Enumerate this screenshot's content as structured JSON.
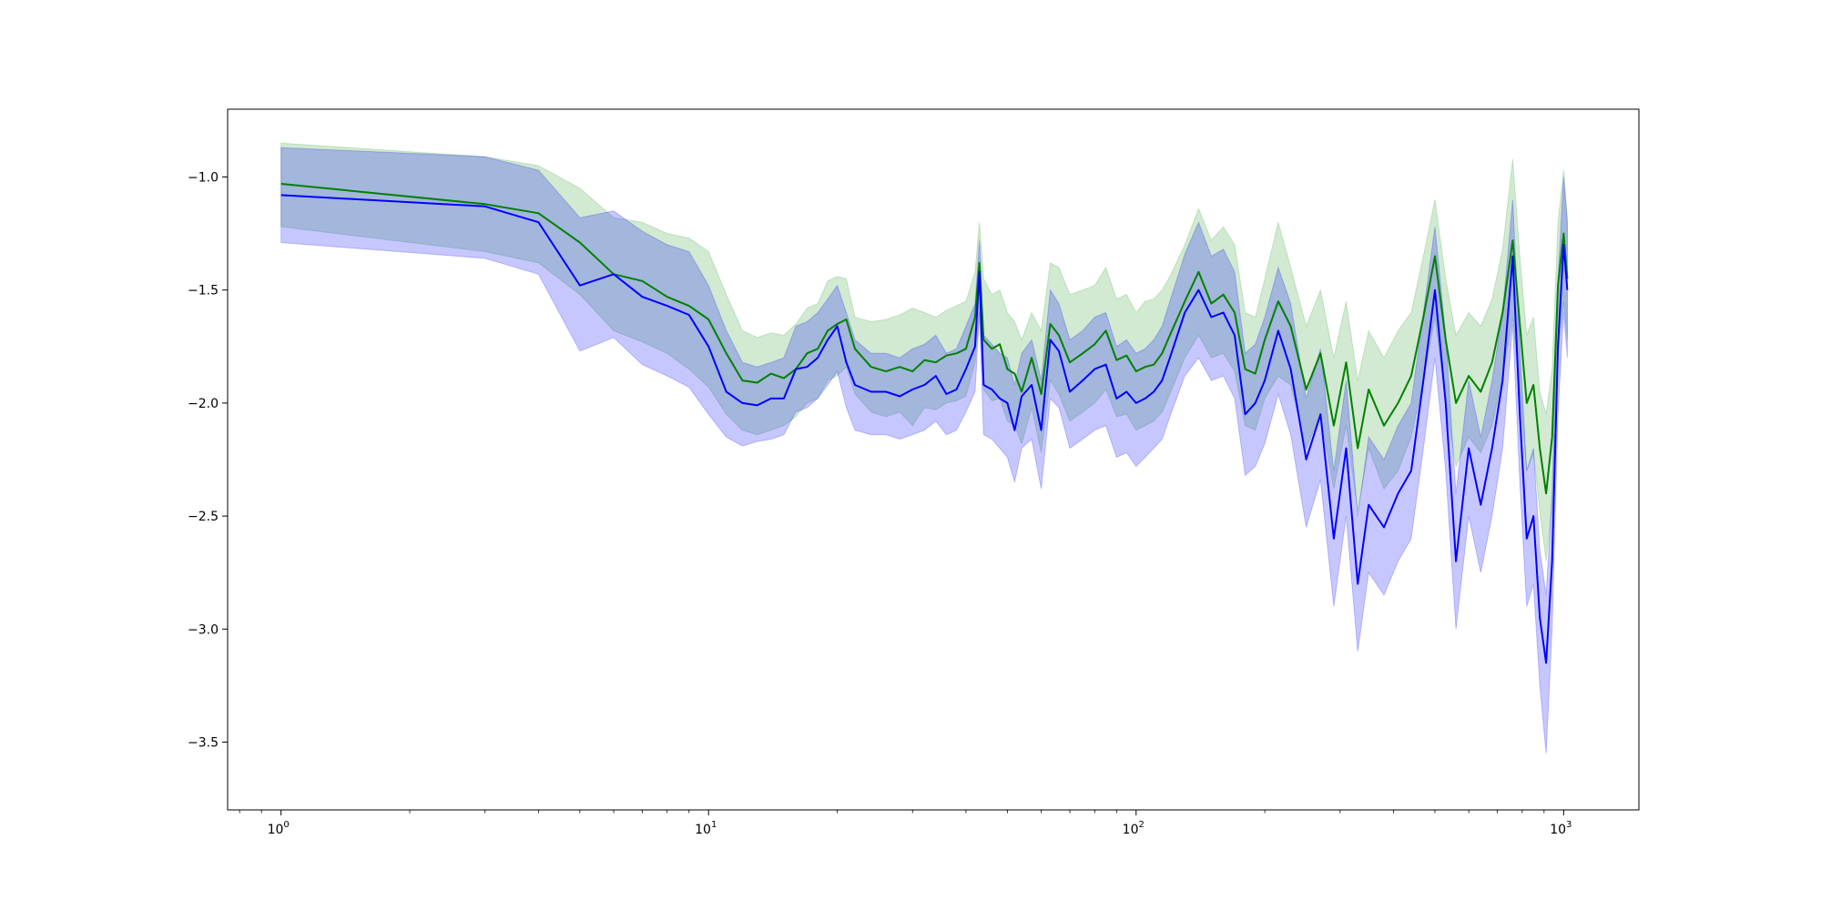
{
  "chart_data": {
    "type": "line",
    "title": "",
    "xlabel": "",
    "ylabel": "",
    "x_scale": "log",
    "xlim": [
      0.75,
      1500
    ],
    "ylim": [
      -3.8,
      -0.7
    ],
    "grid": false,
    "legend": "none",
    "x_ticks": [
      {
        "value": 1,
        "base": "10",
        "exp": "0"
      },
      {
        "value": 10,
        "base": "10",
        "exp": "1"
      },
      {
        "value": 100,
        "base": "10",
        "exp": "2"
      },
      {
        "value": 1000,
        "base": "10",
        "exp": "3"
      }
    ],
    "y_ticks": [
      {
        "value": -1.0,
        "label": "−1.0"
      },
      {
        "value": -1.5,
        "label": "−1.5"
      },
      {
        "value": -2.0,
        "label": "−2.0"
      },
      {
        "value": -2.5,
        "label": "−2.5"
      },
      {
        "value": -3.0,
        "label": "−3.0"
      },
      {
        "value": -3.5,
        "label": "−3.5"
      }
    ],
    "series": [
      {
        "color": "#008000",
        "band_color": "#2ca02c",
        "x": [
          1,
          3,
          4,
          5,
          6,
          7,
          8,
          9,
          10,
          11,
          12,
          13,
          14,
          15,
          16,
          17,
          18,
          19,
          20,
          21,
          22,
          24,
          26,
          28,
          30,
          32,
          34,
          36,
          38,
          40,
          42,
          43,
          44,
          46,
          48,
          50,
          52,
          54,
          57,
          60,
          63,
          66,
          70,
          75,
          80,
          85,
          90,
          95,
          100,
          105,
          110,
          115,
          120,
          130,
          140,
          150,
          160,
          170,
          180,
          190,
          200,
          215,
          230,
          250,
          270,
          290,
          310,
          330,
          350,
          380,
          410,
          440,
          470,
          500,
          530,
          560,
          600,
          640,
          680,
          720,
          760,
          790,
          820,
          850,
          880,
          910,
          940,
          970,
          1000,
          1020
        ],
        "y": [
          -1.03,
          -1.12,
          -1.16,
          -1.29,
          -1.43,
          -1.46,
          -1.53,
          -1.57,
          -1.63,
          -1.78,
          -1.9,
          -1.91,
          -1.87,
          -1.89,
          -1.85,
          -1.78,
          -1.76,
          -1.68,
          -1.65,
          -1.63,
          -1.76,
          -1.84,
          -1.86,
          -1.84,
          -1.86,
          -1.81,
          -1.82,
          -1.79,
          -1.78,
          -1.76,
          -1.62,
          -1.38,
          -1.72,
          -1.76,
          -1.74,
          -1.85,
          -1.87,
          -1.95,
          -1.8,
          -1.96,
          -1.65,
          -1.7,
          -1.82,
          -1.78,
          -1.74,
          -1.68,
          -1.81,
          -1.79,
          -1.86,
          -1.84,
          -1.83,
          -1.78,
          -1.7,
          -1.55,
          -1.42,
          -1.56,
          -1.52,
          -1.6,
          -1.85,
          -1.87,
          -1.72,
          -1.55,
          -1.66,
          -1.94,
          -1.78,
          -2.1,
          -1.82,
          -2.2,
          -1.94,
          -2.1,
          -2.0,
          -1.88,
          -1.62,
          -1.35,
          -1.72,
          -2.0,
          -1.88,
          -1.95,
          -1.82,
          -1.6,
          -1.28,
          -1.65,
          -2.0,
          -1.92,
          -2.2,
          -2.4,
          -2.15,
          -1.48,
          -1.25,
          -1.45
        ],
        "upper": [
          -0.85,
          -0.91,
          -0.95,
          -1.05,
          -1.18,
          -1.2,
          -1.25,
          -1.27,
          -1.33,
          -1.52,
          -1.68,
          -1.71,
          -1.69,
          -1.7,
          -1.65,
          -1.58,
          -1.56,
          -1.46,
          -1.44,
          -1.45,
          -1.62,
          -1.64,
          -1.63,
          -1.61,
          -1.58,
          -1.6,
          -1.62,
          -1.59,
          -1.57,
          -1.55,
          -1.42,
          -1.2,
          -1.45,
          -1.52,
          -1.5,
          -1.6,
          -1.64,
          -1.72,
          -1.6,
          -1.68,
          -1.38,
          -1.4,
          -1.52,
          -1.5,
          -1.48,
          -1.4,
          -1.54,
          -1.52,
          -1.6,
          -1.55,
          -1.54,
          -1.5,
          -1.44,
          -1.3,
          -1.14,
          -1.28,
          -1.22,
          -1.3,
          -1.6,
          -1.62,
          -1.45,
          -1.2,
          -1.4,
          -1.66,
          -1.5,
          -1.8,
          -1.55,
          -1.9,
          -1.68,
          -1.8,
          -1.68,
          -1.6,
          -1.35,
          -1.1,
          -1.45,
          -1.7,
          -1.6,
          -1.66,
          -1.54,
          -1.32,
          -0.92,
          -1.35,
          -1.7,
          -1.62,
          -1.95,
          -2.05,
          -1.85,
          -1.2,
          -0.97,
          -1.18
        ],
        "lower": [
          -1.22,
          -1.33,
          -1.38,
          -1.52,
          -1.68,
          -1.73,
          -1.78,
          -1.85,
          -1.93,
          -2.05,
          -2.12,
          -2.14,
          -2.12,
          -2.1,
          -2.06,
          -2.0,
          -1.98,
          -1.9,
          -1.88,
          -1.84,
          -1.96,
          -2.04,
          -2.06,
          -2.04,
          -2.1,
          -2.02,
          -2.03,
          -2.0,
          -1.99,
          -1.97,
          -1.82,
          -1.6,
          -1.94,
          -1.99,
          -1.98,
          -2.08,
          -2.1,
          -2.18,
          -2.02,
          -2.22,
          -1.9,
          -1.96,
          -2.08,
          -2.04,
          -2.0,
          -1.94,
          -2.06,
          -2.05,
          -2.12,
          -2.1,
          -2.08,
          -2.04,
          -1.96,
          -1.8,
          -1.7,
          -1.8,
          -1.78,
          -1.86,
          -2.1,
          -2.12,
          -1.98,
          -1.88,
          -1.92,
          -2.2,
          -2.05,
          -2.38,
          -2.1,
          -2.48,
          -2.2,
          -2.38,
          -2.3,
          -2.15,
          -1.9,
          -1.62,
          -2.0,
          -2.28,
          -2.15,
          -2.22,
          -2.1,
          -1.88,
          -1.62,
          -1.95,
          -2.3,
          -2.22,
          -2.48,
          -2.7,
          -2.45,
          -1.78,
          -1.55,
          -1.72
        ]
      },
      {
        "color": "#0000ff",
        "band_color": "#0000ff",
        "x": [
          1,
          3,
          4,
          5,
          6,
          7,
          8,
          9,
          10,
          11,
          12,
          13,
          14,
          15,
          16,
          17,
          18,
          19,
          20,
          21,
          22,
          24,
          26,
          28,
          30,
          32,
          34,
          36,
          38,
          40,
          42,
          43,
          44,
          46,
          48,
          50,
          52,
          54,
          57,
          60,
          63,
          66,
          70,
          75,
          80,
          85,
          90,
          95,
          100,
          105,
          110,
          115,
          120,
          130,
          140,
          150,
          160,
          170,
          180,
          190,
          200,
          215,
          230,
          250,
          270,
          290,
          310,
          330,
          350,
          380,
          410,
          440,
          470,
          500,
          530,
          560,
          600,
          640,
          680,
          720,
          760,
          790,
          820,
          850,
          880,
          910,
          940,
          970,
          1000,
          1020
        ],
        "y": [
          -1.08,
          -1.13,
          -1.2,
          -1.48,
          -1.43,
          -1.53,
          -1.57,
          -1.61,
          -1.75,
          -1.95,
          -2.0,
          -2.01,
          -1.98,
          -1.98,
          -1.85,
          -1.84,
          -1.8,
          -1.72,
          -1.66,
          -1.82,
          -1.92,
          -1.95,
          -1.95,
          -1.97,
          -1.94,
          -1.92,
          -1.88,
          -1.96,
          -1.94,
          -1.85,
          -1.75,
          -1.42,
          -1.92,
          -1.94,
          -1.98,
          -2.0,
          -2.12,
          -1.97,
          -1.92,
          -2.12,
          -1.72,
          -1.77,
          -1.95,
          -1.9,
          -1.85,
          -1.83,
          -1.98,
          -1.95,
          -2.0,
          -1.98,
          -1.95,
          -1.9,
          -1.8,
          -1.6,
          -1.5,
          -1.62,
          -1.6,
          -1.7,
          -2.05,
          -2.0,
          -1.9,
          -1.68,
          -1.85,
          -2.25,
          -2.05,
          -2.6,
          -2.2,
          -2.8,
          -2.45,
          -2.55,
          -2.4,
          -2.3,
          -1.9,
          -1.5,
          -2.0,
          -2.7,
          -2.2,
          -2.45,
          -2.2,
          -1.9,
          -1.35,
          -2.05,
          -2.6,
          -2.5,
          -2.95,
          -3.15,
          -2.7,
          -1.75,
          -1.3,
          -1.5
        ],
        "upper": [
          -0.87,
          -0.91,
          -0.97,
          -1.18,
          -1.15,
          -1.24,
          -1.3,
          -1.33,
          -1.48,
          -1.68,
          -1.82,
          -1.84,
          -1.82,
          -1.8,
          -1.66,
          -1.64,
          -1.6,
          -1.54,
          -1.48,
          -1.6,
          -1.72,
          -1.78,
          -1.78,
          -1.8,
          -1.76,
          -1.74,
          -1.7,
          -1.78,
          -1.76,
          -1.66,
          -1.56,
          -1.28,
          -1.7,
          -1.74,
          -1.78,
          -1.8,
          -1.92,
          -1.78,
          -1.72,
          -1.9,
          -1.5,
          -1.56,
          -1.72,
          -1.68,
          -1.62,
          -1.6,
          -1.75,
          -1.72,
          -1.78,
          -1.76,
          -1.72,
          -1.66,
          -1.55,
          -1.34,
          -1.2,
          -1.35,
          -1.32,
          -1.42,
          -1.78,
          -1.74,
          -1.62,
          -1.4,
          -1.56,
          -1.98,
          -1.76,
          -2.3,
          -1.9,
          -2.5,
          -2.15,
          -2.25,
          -2.1,
          -2.0,
          -1.6,
          -1.22,
          -1.7,
          -2.4,
          -1.9,
          -2.15,
          -1.9,
          -1.6,
          -1.1,
          -1.75,
          -2.3,
          -2.2,
          -2.65,
          -2.85,
          -2.4,
          -1.45,
          -1.0,
          -1.2
        ],
        "lower": [
          -1.29,
          -1.36,
          -1.43,
          -1.77,
          -1.71,
          -1.83,
          -1.88,
          -1.93,
          -2.05,
          -2.15,
          -2.19,
          -2.17,
          -2.16,
          -2.14,
          -2.04,
          -2.02,
          -1.98,
          -1.92,
          -1.86,
          -2.02,
          -2.12,
          -2.14,
          -2.14,
          -2.16,
          -2.14,
          -2.12,
          -2.08,
          -2.14,
          -2.12,
          -2.04,
          -1.95,
          -1.6,
          -2.14,
          -2.16,
          -2.2,
          -2.24,
          -2.35,
          -2.2,
          -2.16,
          -2.38,
          -1.98,
          -2.02,
          -2.2,
          -2.16,
          -2.12,
          -2.1,
          -2.24,
          -2.22,
          -2.28,
          -2.24,
          -2.2,
          -2.16,
          -2.06,
          -1.88,
          -1.8,
          -1.9,
          -1.88,
          -1.98,
          -2.32,
          -2.28,
          -2.18,
          -1.96,
          -2.14,
          -2.55,
          -2.34,
          -2.9,
          -2.5,
          -3.1,
          -2.75,
          -2.85,
          -2.7,
          -2.6,
          -2.2,
          -1.8,
          -2.3,
          -3.0,
          -2.5,
          -2.75,
          -2.5,
          -2.2,
          -1.65,
          -2.35,
          -2.9,
          -2.8,
          -3.25,
          -3.55,
          -3.0,
          -2.05,
          -1.6,
          -1.8
        ]
      }
    ]
  }
}
